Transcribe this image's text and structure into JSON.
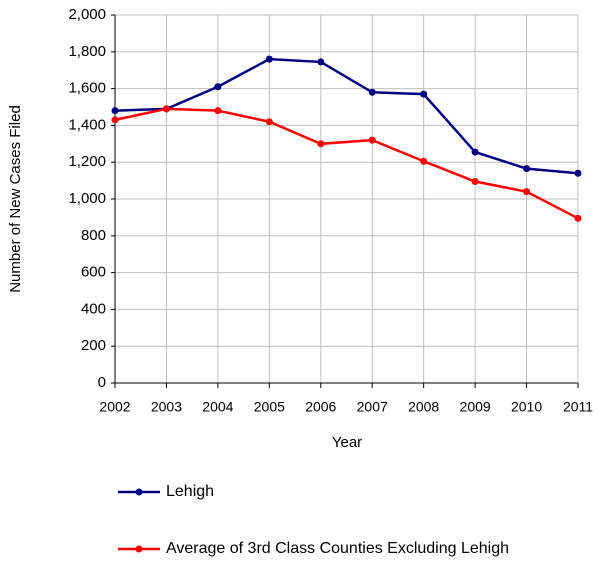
{
  "chart_data": {
    "type": "line",
    "x_label": "Year",
    "y_label": "Number of New Cases Filed",
    "x": [
      2002,
      2003,
      2004,
      2005,
      2006,
      2007,
      2008,
      2009,
      2010,
      2011
    ],
    "xlim": [
      2002,
      2011
    ],
    "xticks": [
      2002,
      2003,
      2004,
      2005,
      2006,
      2007,
      2008,
      2009,
      2010,
      2011
    ],
    "ylim": [
      0,
      2000
    ],
    "yticks": [
      0,
      200,
      400,
      600,
      800,
      {
        "value": 1000,
        "label": "1,000"
      },
      {
        "value": 1200,
        "label": "1,200"
      },
      {
        "value": 1400,
        "label": "1,400"
      },
      {
        "value": 1600,
        "label": "1,600"
      },
      {
        "value": 1800,
        "label": "1,800"
      },
      {
        "value": 2000,
        "label": "2,000"
      }
    ],
    "grid": true,
    "legend": "bottom",
    "series": [
      {
        "name": "Lehigh",
        "color": "#000080",
        "values": [
          1480,
          1490,
          1610,
          1760,
          1745,
          1580,
          1570,
          1255,
          1165,
          1140
        ]
      },
      {
        "name": "Average of 3rd Class Counties Excluding Lehigh",
        "color": "#ff0000",
        "values": [
          1430,
          1490,
          1480,
          1420,
          1300,
          1320,
          1205,
          1095,
          1040,
          895
        ]
      }
    ]
  }
}
